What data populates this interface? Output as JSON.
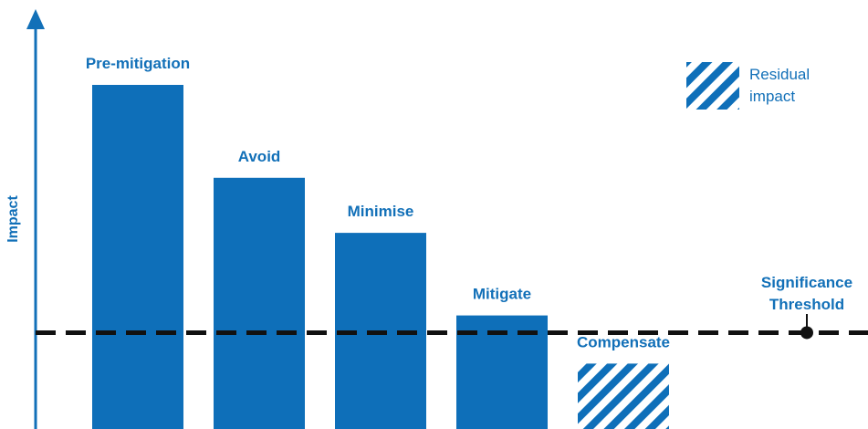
{
  "colors": {
    "bar": "#0e6fb9",
    "text": "#1270b8",
    "threshold": "#111111",
    "hatch_bg": "#ffffff"
  },
  "chart_data": {
    "type": "bar",
    "title": "",
    "xlabel": "",
    "ylabel": "Impact",
    "categories": [
      "Pre-mitigation",
      "Avoid",
      "Minimise",
      "Mitigate",
      "Compensate"
    ],
    "values": [
      100,
      73,
      57,
      33,
      19
    ],
    "residual": [
      false,
      false,
      false,
      false,
      true
    ],
    "ylim": [
      0,
      120
    ],
    "threshold": {
      "value": 28,
      "label_line1": "Significance",
      "label_line2": "Threshold"
    },
    "legend": {
      "label_line1": "Residual",
      "label_line2": "impact",
      "position": "top-right"
    },
    "grid": false
  }
}
